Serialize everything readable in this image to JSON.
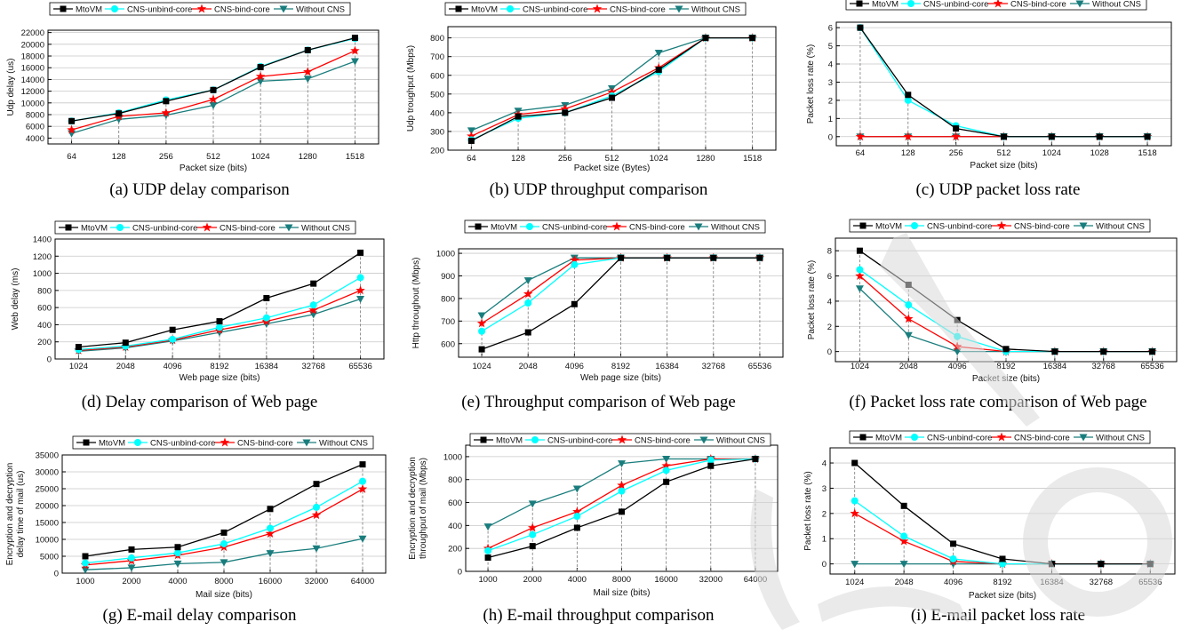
{
  "legend_names": [
    "MtoVM",
    "CNS-unbind-core",
    "CNS-bind-core",
    "Without CNS"
  ],
  "series_colors": [
    "#000000",
    "#00ffff",
    "#ff0000",
    "#1a7d7d"
  ],
  "series_markers": [
    "square",
    "circle",
    "star",
    "triangle-down"
  ],
  "chart_data": [
    {
      "id": "a",
      "type": "line",
      "caption": "(a) UDP delay comparison",
      "xlabel": "Packet size (bits)",
      "ylabel": "Udp delay (us)",
      "categories": [
        "64",
        "128",
        "256",
        "512",
        "1024",
        "1280",
        "1518"
      ],
      "ylim": [
        3000,
        22400
      ],
      "yticks": [
        4000,
        6000,
        8000,
        10000,
        12000,
        14000,
        16000,
        18000,
        20000,
        22000
      ],
      "ytick_labels": [
        "4000",
        "6000",
        "8000",
        "10000",
        "12000",
        "14000",
        "16000",
        "18000",
        "20000",
        "22000"
      ],
      "series": [
        {
          "name": "MtoVM",
          "values": [
            6900,
            8200,
            10300,
            12200,
            16100,
            19000,
            21100
          ]
        },
        {
          "name": "CNS-unbind-core",
          "values": [
            6900,
            8300,
            10500,
            12200,
            16200,
            19000,
            21000
          ]
        },
        {
          "name": "CNS-bind-core",
          "values": [
            5400,
            7700,
            8300,
            10600,
            14500,
            15300,
            18900
          ]
        },
        {
          "name": "Without CNS",
          "values": [
            4800,
            7200,
            7900,
            9600,
            13700,
            14100,
            17100
          ]
        }
      ]
    },
    {
      "id": "b",
      "type": "line",
      "caption": "(b) UDP throughput comparison",
      "xlabel": "Packet size (Bytes)",
      "ylabel": "Udp troughput (Mbps)",
      "categories": [
        "64",
        "128",
        "256",
        "512",
        "1024",
        "1280",
        "1518"
      ],
      "ylim": [
        200,
        860
      ],
      "yticks": [
        200,
        300,
        400,
        500,
        600,
        700,
        800
      ],
      "ytick_labels": [
        "200",
        "300",
        "400",
        "500",
        "600",
        "700",
        "800"
      ],
      "series": [
        {
          "name": "MtoVM",
          "values": [
            250,
            380,
            400,
            480,
            630,
            800,
            800
          ]
        },
        {
          "name": "CNS-unbind-core",
          "values": [
            255,
            370,
            400,
            490,
            620,
            800,
            800
          ]
        },
        {
          "name": "CNS-bind-core",
          "values": [
            275,
            390,
            420,
            510,
            640,
            800,
            800
          ]
        },
        {
          "name": "Without CNS",
          "values": [
            305,
            410,
            440,
            530,
            720,
            800,
            800
          ]
        }
      ]
    },
    {
      "id": "c",
      "type": "line",
      "caption": "(c) UDP packet loss rate",
      "xlabel": "Packet size (bits)",
      "ylabel": "Packet loss rate (%)",
      "categories": [
        "64",
        "128",
        "256",
        "512",
        "1024",
        "1028",
        "1518"
      ],
      "ylim": [
        -0.5,
        6.3
      ],
      "yticks": [
        0,
        1,
        2,
        3,
        4,
        5,
        6
      ],
      "ytick_labels": [
        "0",
        "1",
        "2",
        "3",
        "4",
        "5",
        "6"
      ],
      "series": [
        {
          "name": "MtoVM",
          "values": [
            6.0,
            2.3,
            0.45,
            0,
            0,
            0,
            0
          ]
        },
        {
          "name": "CNS-unbind-core",
          "values": [
            6.0,
            2.0,
            0.6,
            0,
            0,
            0,
            0
          ]
        },
        {
          "name": "CNS-bind-core",
          "values": [
            0,
            0,
            0,
            0,
            0,
            0,
            0
          ]
        },
        {
          "name": "Without CNS",
          "values": [
            0,
            0,
            0,
            0,
            0,
            0,
            0
          ]
        }
      ]
    },
    {
      "id": "d",
      "type": "line",
      "caption": "(d) Delay comparison of Web page",
      "xlabel": "Web page size (bits)",
      "ylabel": "Web delay (ms)",
      "categories": [
        "1024",
        "2048",
        "4096",
        "8192",
        "16384",
        "32768",
        "65536"
      ],
      "ylim": [
        0,
        1400
      ],
      "yticks": [
        0,
        200,
        400,
        600,
        800,
        1000,
        1200,
        1400
      ],
      "ytick_labels": [
        "0",
        "200",
        "400",
        "600",
        "800",
        "1000",
        "1200",
        "1400"
      ],
      "series": [
        {
          "name": "MtoVM",
          "values": [
            140,
            190,
            340,
            440,
            710,
            880,
            1240
          ]
        },
        {
          "name": "CNS-unbind-core",
          "values": [
            110,
            150,
            230,
            370,
            480,
            630,
            950
          ]
        },
        {
          "name": "CNS-bind-core",
          "values": [
            100,
            140,
            220,
            340,
            440,
            570,
            800
          ]
        },
        {
          "name": "Without CNS",
          "values": [
            90,
            130,
            210,
            310,
            410,
            520,
            700
          ]
        }
      ]
    },
    {
      "id": "e",
      "type": "line",
      "caption": "(e) Throughput comparison of Web page",
      "xlabel": "Web page size (bits)",
      "ylabel": "Http throughout (Mbps)",
      "categories": [
        "1024",
        "2048",
        "4096",
        "8192",
        "16384",
        "32768",
        "65536"
      ],
      "ylim": [
        540,
        1020
      ],
      "yticks": [
        600,
        700,
        800,
        900,
        1000
      ],
      "ytick_labels": [
        "600",
        "700",
        "800",
        "900",
        "1000"
      ],
      "series": [
        {
          "name": "MtoVM",
          "values": [
            575,
            650,
            775,
            980,
            980,
            980,
            980
          ]
        },
        {
          "name": "CNS-unbind-core",
          "values": [
            655,
            780,
            950,
            980,
            980,
            980,
            980
          ]
        },
        {
          "name": "CNS-bind-core",
          "values": [
            690,
            820,
            970,
            980,
            980,
            980,
            980
          ]
        },
        {
          "name": "Without CNS",
          "values": [
            725,
            880,
            980,
            980,
            980,
            980,
            980
          ]
        }
      ]
    },
    {
      "id": "f",
      "type": "line",
      "caption": "(f) Packet loss rate comparison of Web page",
      "xlabel": "Packet size (bits)",
      "ylabel": "Packet loss rate (%)",
      "categories": [
        "1024",
        "2048",
        "4096",
        "8192",
        "16384",
        "32768",
        "65536"
      ],
      "ylim": [
        -0.8,
        9
      ],
      "yticks": [
        0,
        2,
        4,
        6,
        8
      ],
      "ytick_labels": [
        "0",
        "2",
        "4",
        "6",
        "8"
      ],
      "series": [
        {
          "name": "MtoVM",
          "values": [
            8.0,
            5.3,
            2.5,
            0.2,
            0,
            0,
            0
          ]
        },
        {
          "name": "CNS-unbind-core",
          "values": [
            6.5,
            3.7,
            1.2,
            0,
            0,
            0,
            0
          ]
        },
        {
          "name": "CNS-bind-core",
          "values": [
            6.0,
            2.6,
            0.4,
            0,
            0,
            0,
            0
          ]
        },
        {
          "name": "Without CNS",
          "values": [
            5.0,
            1.3,
            0,
            0,
            0,
            0,
            0
          ]
        }
      ]
    },
    {
      "id": "g",
      "type": "line",
      "caption": "(g) E-mail delay comparison",
      "xlabel": "Mail size (bits)",
      "ylabel": "Encryption and decryption delay time of mail (us)",
      "ylabel_lines": [
        "Encryption and decryption",
        "delay time of mail (us)"
      ],
      "categories": [
        "1000",
        "2000",
        "4000",
        "8000",
        "16000",
        "32000",
        "64000"
      ],
      "ylim": [
        0,
        35000
      ],
      "yticks": [
        0,
        5000,
        10000,
        15000,
        20000,
        25000,
        30000,
        35000
      ],
      "ytick_labels": [
        "0",
        "5000",
        "10000",
        "15000",
        "20000",
        "25000",
        "30000",
        "35000"
      ],
      "series": [
        {
          "name": "MtoVM",
          "values": [
            5000,
            7000,
            7700,
            12000,
            19000,
            26400,
            32200
          ]
        },
        {
          "name": "CNS-unbind-core",
          "values": [
            3000,
            4500,
            6000,
            8700,
            13300,
            19500,
            27200
          ]
        },
        {
          "name": "CNS-bind-core",
          "values": [
            2400,
            3700,
            5300,
            7700,
            11700,
            17200,
            24900
          ]
        },
        {
          "name": "Without CNS",
          "values": [
            1000,
            1600,
            2800,
            3200,
            5900,
            7300,
            10200
          ]
        }
      ]
    },
    {
      "id": "h",
      "type": "line",
      "caption": "(h) E-mail throughput comparison",
      "xlabel": "Mail size (bits)",
      "ylabel": "Encryption and decryption throughput of mail (Mbps)",
      "ylabel_lines": [
        "Encryption and decryption",
        "throughput of mail (Mbps)"
      ],
      "categories": [
        "1000",
        "2000",
        "4000",
        "8000",
        "16000",
        "32000",
        "64000"
      ],
      "ylim": [
        0,
        1100
      ],
      "yticks": [
        0,
        200,
        400,
        600,
        800,
        1000
      ],
      "ytick_labels": [
        "0",
        "200",
        "400",
        "600",
        "800",
        "1000"
      ],
      "series": [
        {
          "name": "MtoVM",
          "values": [
            120,
            220,
            380,
            520,
            780,
            920,
            980
          ]
        },
        {
          "name": "CNS-unbind-core",
          "values": [
            180,
            320,
            480,
            700,
            880,
            970,
            980
          ]
        },
        {
          "name": "CNS-bind-core",
          "values": [
            200,
            380,
            520,
            750,
            920,
            980,
            980
          ]
        },
        {
          "name": "Without CNS",
          "values": [
            390,
            590,
            720,
            940,
            980,
            980,
            980
          ]
        }
      ]
    },
    {
      "id": "i",
      "type": "line",
      "caption": "(i) E-mail packet loss rate",
      "xlabel": "Packet size (bits)",
      "ylabel": "Packet loss rate (%)",
      "categories": [
        "1024",
        "2048",
        "4096",
        "8192",
        "16384",
        "32768",
        "65536"
      ],
      "ylim": [
        -0.4,
        4.6
      ],
      "yticks": [
        0,
        1,
        2,
        3,
        4
      ],
      "ytick_labels": [
        "0",
        "1",
        "2",
        "3",
        "4"
      ],
      "series": [
        {
          "name": "MtoVM",
          "values": [
            4.0,
            2.3,
            0.8,
            0.2,
            0,
            0,
            0
          ]
        },
        {
          "name": "CNS-unbind-core",
          "values": [
            2.5,
            1.1,
            0.2,
            0,
            0,
            0,
            0
          ]
        },
        {
          "name": "CNS-bind-core",
          "values": [
            2.0,
            0.9,
            0.1,
            0,
            0,
            0,
            0
          ]
        },
        {
          "name": "Without CNS",
          "values": [
            0,
            0,
            0,
            0,
            0,
            0,
            0
          ]
        }
      ]
    }
  ]
}
